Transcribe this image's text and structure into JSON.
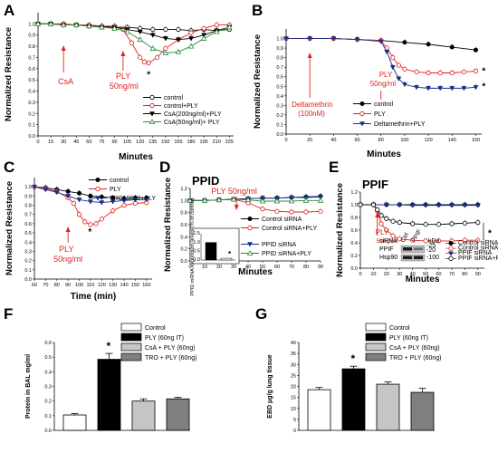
{
  "colors": {
    "red": "#e0201b",
    "black": "#000000",
    "green": "#2a8a3a",
    "blue": "#1a2f8a",
    "gray_light": "#c6c6c6",
    "gray_dark": "#7f7f7f"
  },
  "chart_data": [
    {
      "panel": "A",
      "type": "line",
      "xlabel": "Minutes",
      "ylabel": "Normalized Resistance",
      "xlim": [
        0,
        230
      ],
      "ylim": [
        0,
        1.1
      ],
      "xticks": [
        0,
        15,
        30,
        45,
        60,
        75,
        90,
        105,
        120,
        135,
        150,
        165,
        180,
        195,
        210,
        225
      ],
      "yticks": [
        0.0,
        0.1,
        0.2,
        0.3,
        0.4,
        0.5,
        0.6,
        0.7,
        0.8,
        0.9,
        1.0
      ],
      "annotations": [
        {
          "text": "CsA",
          "x": 30
        },
        {
          "text": "PLY",
          "x": 100
        },
        {
          "text": "50ng/ml",
          "x": 100
        }
      ],
      "asterisk": {
        "text": "*",
        "x": 128,
        "y": 0.52
      },
      "series": [
        {
          "name": "control",
          "marker": "circle-open",
          "color": "#000000",
          "x": [
            0,
            15,
            30,
            45,
            60,
            75,
            90,
            105,
            120,
            135,
            150,
            165,
            180,
            195,
            210,
            225
          ],
          "y": [
            1.0,
            1.0,
            0.99,
            0.99,
            0.98,
            0.98,
            0.97,
            0.97,
            0.96,
            0.95,
            0.95,
            0.95,
            0.94,
            0.95,
            0.94,
            0.95
          ]
        },
        {
          "name": "control+PLY",
          "marker": "circle-open",
          "color": "#e0201b",
          "x": [
            0,
            15,
            30,
            45,
            60,
            75,
            90,
            100,
            110,
            120,
            125,
            130,
            140,
            150,
            165,
            180,
            195,
            210,
            225
          ],
          "y": [
            1.0,
            1.0,
            1.0,
            0.99,
            0.99,
            0.98,
            0.98,
            0.95,
            0.83,
            0.7,
            0.66,
            0.65,
            0.7,
            0.78,
            0.86,
            0.92,
            0.96,
            0.99,
            0.99
          ]
        },
        {
          "name": "CsA(200ng/ml)+PLY",
          "marker": "triangle-down",
          "color": "#000000",
          "x": [
            0,
            15,
            30,
            45,
            60,
            75,
            90,
            105,
            120,
            135,
            150,
            165,
            180,
            195,
            210,
            225
          ],
          "y": [
            1.0,
            1.0,
            0.99,
            0.99,
            0.98,
            0.97,
            0.97,
            0.95,
            0.93,
            0.9,
            0.87,
            0.86,
            0.87,
            0.9,
            0.94,
            0.97
          ]
        },
        {
          "name": "CsA(50ng/ml)+ PLY",
          "marker": "triangle-up-open",
          "color": "#2a8a3a",
          "x": [
            0,
            15,
            30,
            45,
            60,
            75,
            90,
            105,
            120,
            135,
            150,
            165,
            180,
            195,
            210,
            225
          ],
          "y": [
            1.0,
            1.0,
            0.99,
            0.99,
            0.98,
            0.97,
            0.96,
            0.93,
            0.86,
            0.78,
            0.74,
            0.75,
            0.8,
            0.87,
            0.93,
            0.97
          ]
        }
      ]
    },
    {
      "panel": "B",
      "type": "line",
      "xlabel": "Minutes",
      "ylabel": "Normalized Resistance",
      "xlim": [
        0,
        165
      ],
      "ylim": [
        0,
        1.1
      ],
      "xticks": [
        0,
        20,
        40,
        60,
        80,
        100,
        120,
        140,
        160
      ],
      "yticks": [
        0.0,
        0.1,
        0.2,
        0.3,
        0.4,
        0.5,
        0.6,
        0.7,
        0.8,
        0.9,
        1.0
      ],
      "annotations": [
        {
          "text": "Deltamethrin",
          "x": 20
        },
        {
          "text": "(100nM)",
          "x": 20
        },
        {
          "text": "PLY",
          "x": 80
        },
        {
          "text": "50ng/ml",
          "x": 80
        }
      ],
      "asterisks": [
        {
          "text": "*",
          "x": 163,
          "y": 0.66
        },
        {
          "text": "*",
          "x": 163,
          "y": 0.5
        }
      ],
      "series": [
        {
          "name": "control",
          "marker": "circle-filled",
          "color": "#000000",
          "x": [
            0,
            20,
            40,
            60,
            80,
            100,
            120,
            140,
            160
          ],
          "y": [
            1.0,
            1.0,
            1.0,
            0.99,
            0.98,
            0.96,
            0.94,
            0.91,
            0.88
          ]
        },
        {
          "name": "PLY",
          "marker": "circle-open",
          "color": "#e0201b",
          "x": [
            0,
            20,
            40,
            60,
            80,
            85,
            90,
            95,
            100,
            110,
            120,
            130,
            140,
            150,
            160
          ],
          "y": [
            1.0,
            1.0,
            1.0,
            0.99,
            0.98,
            0.9,
            0.8,
            0.72,
            0.68,
            0.65,
            0.64,
            0.64,
            0.64,
            0.65,
            0.66
          ]
        },
        {
          "name": "Deltamethrin+PLY",
          "marker": "triangle-down",
          "color": "#1a2f8a",
          "x": [
            0,
            20,
            40,
            60,
            80,
            85,
            90,
            95,
            100,
            110,
            120,
            130,
            140,
            150,
            160
          ],
          "y": [
            1.0,
            1.0,
            1.0,
            0.99,
            0.97,
            0.86,
            0.7,
            0.58,
            0.52,
            0.49,
            0.48,
            0.48,
            0.48,
            0.48,
            0.49
          ]
        }
      ]
    },
    {
      "panel": "C",
      "type": "line",
      "xlabel": "Time (min)",
      "ylabel": "Normalized Resistance",
      "xlim": [
        60,
        165
      ],
      "ylim": [
        0,
        1.1
      ],
      "xticks": [
        60,
        70,
        80,
        90,
        100,
        110,
        120,
        130,
        140,
        150,
        160
      ],
      "yticks": [
        0.0,
        0.1,
        0.2,
        0.3,
        0.4,
        0.5,
        0.6,
        0.7,
        0.8,
        0.9,
        1.0
      ],
      "annotations": [
        {
          "text": "PLY",
          "x": 90
        },
        {
          "text": "50ng/ml",
          "x": 90
        }
      ],
      "asterisk": {
        "text": "*",
        "x": 108,
        "y": 0.48
      },
      "series": [
        {
          "name": "control",
          "marker": "circle-filled",
          "color": "#000000",
          "x": [
            60,
            70,
            80,
            90,
            100,
            110,
            120,
            130,
            140,
            150,
            160
          ],
          "y": [
            1.0,
            0.99,
            0.97,
            0.95,
            0.93,
            0.9,
            0.89,
            0.88,
            0.87,
            0.88,
            0.88
          ]
        },
        {
          "name": "PLY",
          "marker": "circle-open",
          "color": "#e0201b",
          "x": [
            60,
            70,
            80,
            90,
            95,
            100,
            105,
            110,
            115,
            120,
            130,
            140,
            150,
            160
          ],
          "y": [
            1.0,
            0.98,
            0.95,
            0.88,
            0.82,
            0.7,
            0.62,
            0.59,
            0.6,
            0.65,
            0.74,
            0.8,
            0.82,
            0.83
          ]
        },
        {
          "name": "TRO19622+PLY",
          "marker": "triangle-down",
          "color": "#1a2f8a",
          "x": [
            60,
            70,
            80,
            90,
            100,
            110,
            120,
            130,
            140,
            150,
            160
          ],
          "y": [
            1.0,
            0.97,
            0.94,
            0.9,
            0.86,
            0.84,
            0.83,
            0.84,
            0.85,
            0.86,
            0.86
          ]
        }
      ]
    },
    {
      "panel": "D",
      "type": "line",
      "title": "PPID",
      "xlabel": "Minutes",
      "ylabel": "Normalized Resistance",
      "xlim": [
        0,
        90
      ],
      "ylim": [
        0,
        1.2
      ],
      "xticks": [
        0,
        10,
        20,
        30,
        40,
        50,
        60,
        70,
        80,
        90
      ],
      "yticks": [
        0.0,
        0.2,
        0.4,
        0.6,
        0.8,
        1.0,
        1.2
      ],
      "annotations": [
        {
          "text": "PLY 50ng/ml",
          "x": 32
        }
      ],
      "series": [
        {
          "name": "Control siRNA",
          "marker": "circle-filled",
          "color": "#000000",
          "x": [
            0,
            10,
            20,
            30,
            40,
            50,
            60,
            70,
            80,
            90
          ],
          "y": [
            1.0,
            1.0,
            1.01,
            1.02,
            1.03,
            1.04,
            1.04,
            1.05,
            1.06,
            1.07
          ]
        },
        {
          "name": "Control siRNA+PLY",
          "marker": "circle-open",
          "color": "#e0201b",
          "x": [
            0,
            10,
            20,
            30,
            40,
            50,
            60,
            70,
            80,
            90
          ],
          "y": [
            1.0,
            1.0,
            1.01,
            1.02,
            0.96,
            0.86,
            0.82,
            0.81,
            0.81,
            0.82
          ]
        },
        {
          "name": "PPID siRNA",
          "marker": "triangle-down",
          "color": "#1a2f8a",
          "x": [
            0,
            10,
            20,
            30,
            40,
            50,
            60,
            70,
            80,
            90
          ],
          "y": [
            1.0,
            1.0,
            1.01,
            1.02,
            1.03,
            1.04,
            1.04,
            1.05,
            1.05,
            1.06
          ]
        },
        {
          "name": "PPID siRNA+PLY",
          "marker": "triangle-up-open",
          "color": "#2a8a3a",
          "x": [
            0,
            10,
            20,
            30,
            40,
            50,
            60,
            70,
            80,
            90
          ],
          "y": [
            1.0,
            1.0,
            1.01,
            1.02,
            1.01,
            0.99,
            0.99,
            0.99,
            1.0,
            1.0
          ]
        }
      ],
      "inset": {
        "type": "bar",
        "ylabel": "PPID mRNA expression levels (% of control)",
        "ylim": [
          0,
          1.5
        ],
        "yticks": [
          0.0,
          0.5,
          1.0,
          1.5
        ],
        "values": [
          1.0,
          0.1
        ],
        "colors": [
          "#000000",
          "#ffffff"
        ],
        "asterisk": "*"
      }
    },
    {
      "panel": "E",
      "type": "line",
      "title": "PPIF",
      "xlabel": "Minutes",
      "ylabel": "Normalized Resistance",
      "xlim": [
        0,
        95
      ],
      "ylim": [
        0,
        1.2
      ],
      "xticks": [
        0,
        10,
        20,
        30,
        40,
        50,
        60,
        70,
        80,
        90
      ],
      "yticks": [
        0.0,
        0.2,
        0.4,
        0.6,
        0.8,
        1.0,
        1.2
      ],
      "annotations": [
        {
          "text": "PLY",
          "x": 13
        },
        {
          "text": "50ng/ml",
          "x": 13
        }
      ],
      "asterisk": {
        "text": "*",
        "x": 95,
        "y": 0.55
      },
      "series": [
        {
          "name": "Control siRNA",
          "marker": "circle-filled",
          "color": "#000000",
          "x": [
            0,
            10,
            20,
            30,
            40,
            50,
            60,
            70,
            80,
            90
          ],
          "y": [
            1.0,
            1.0,
            1.0,
            1.0,
            1.0,
            1.0,
            1.0,
            1.0,
            1.0,
            1.0
          ]
        },
        {
          "name": "Control siRNA+PLY",
          "marker": "circle-open",
          "color": "#e0201b",
          "x": [
            0,
            10,
            13,
            16,
            20,
            25,
            30,
            40,
            50,
            60,
            70,
            80,
            90
          ],
          "y": [
            1.0,
            1.0,
            0.9,
            0.7,
            0.6,
            0.51,
            0.46,
            0.44,
            0.43,
            0.43,
            0.43,
            0.44,
            0.44
          ]
        },
        {
          "name": "PPIF siRNA",
          "marker": "triangle-down",
          "color": "#1a2f8a",
          "x": [
            0,
            10,
            20,
            30,
            40,
            50,
            60,
            70,
            80,
            90
          ],
          "y": [
            1.0,
            1.0,
            1.0,
            1.0,
            0.99,
            0.99,
            0.99,
            0.99,
            0.99,
            0.99
          ]
        },
        {
          "name": "PPIF siRNA+PLY",
          "marker": "circle-open",
          "color": "#000000",
          "x": [
            0,
            10,
            13,
            16,
            20,
            25,
            30,
            40,
            50,
            60,
            70,
            80,
            90
          ],
          "y": [
            1.0,
            1.0,
            0.92,
            0.83,
            0.78,
            0.74,
            0.72,
            0.7,
            0.69,
            0.69,
            0.7,
            0.71,
            0.72
          ]
        }
      ],
      "blot": {
        "column_labels": [
          "siRNA",
          "Ctrl",
          "PPIF",
          "kDa"
        ],
        "rows": [
          "PPIF",
          "Hsp90"
        ],
        "markers": [
          "25",
          "20",
          "100"
        ]
      }
    },
    {
      "panel": "F",
      "type": "bar",
      "ylabel": "Protein in BAL mg/ml",
      "ylim": [
        0,
        0.6
      ],
      "yticks": [
        0.0,
        0.1,
        0.2,
        0.3,
        0.4,
        0.5,
        0.6
      ],
      "categories": [
        "Control",
        "PLY (60ng IT)",
        "CsA + PLY (60ng)",
        "TRO + PLY (60ng)"
      ],
      "values": [
        0.105,
        0.485,
        0.2,
        0.215
      ],
      "errors": [
        0.01,
        0.04,
        0.015,
        0.01
      ],
      "colors": [
        "#ffffff",
        "#000000",
        "#c6c6c6",
        "#7f7f7f"
      ],
      "asterisk": {
        "text": "*",
        "category": 1
      }
    },
    {
      "panel": "G",
      "type": "bar",
      "ylabel": "EBD μg/g lung tissue",
      "ylim": [
        0,
        40
      ],
      "yticks": [
        0,
        5,
        10,
        15,
        20,
        25,
        30,
        35,
        40
      ],
      "categories": [
        "Control",
        "PLY (60ng IT)",
        "CsA + PLY (60ng)",
        "TRO + PLY (60ng)"
      ],
      "values": [
        18.5,
        28.0,
        21.0,
        17.3
      ],
      "errors": [
        1.0,
        1.2,
        1.0,
        1.8
      ],
      "colors": [
        "#ffffff",
        "#000000",
        "#c6c6c6",
        "#7f7f7f"
      ],
      "asterisk": {
        "text": "*",
        "category": 1
      }
    }
  ]
}
